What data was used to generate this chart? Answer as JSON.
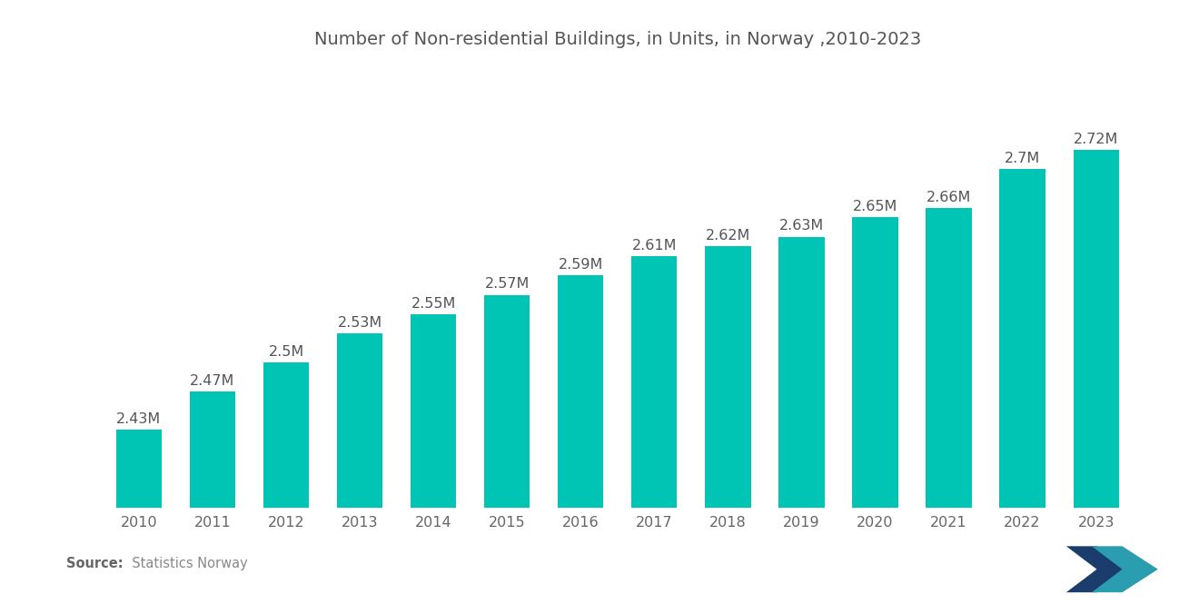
{
  "title": "Number of Non-residential Buildings, in Units, in Norway ,2010-2023",
  "years": [
    2010,
    2011,
    2012,
    2013,
    2014,
    2015,
    2016,
    2017,
    2018,
    2019,
    2020,
    2021,
    2022,
    2023
  ],
  "values": [
    2.43,
    2.47,
    2.5,
    2.53,
    2.55,
    2.57,
    2.59,
    2.61,
    2.62,
    2.63,
    2.65,
    2.66,
    2.7,
    2.72
  ],
  "labels": [
    "2.43M",
    "2.47M",
    "2.5M",
    "2.53M",
    "2.55M",
    "2.57M",
    "2.59M",
    "2.61M",
    "2.62M",
    "2.63M",
    "2.65M",
    "2.66M",
    "2.7M",
    "2.72M"
  ],
  "bar_color": "#00C4B4",
  "background_color": "#ffffff",
  "title_fontsize": 14,
  "label_fontsize": 11.5,
  "tick_fontsize": 11.5,
  "ylim_min": 2.35,
  "ylim_max": 2.8,
  "bar_bottom": 2.35,
  "logo_dark": "#1b3d6e",
  "logo_teal": "#2b9db0"
}
